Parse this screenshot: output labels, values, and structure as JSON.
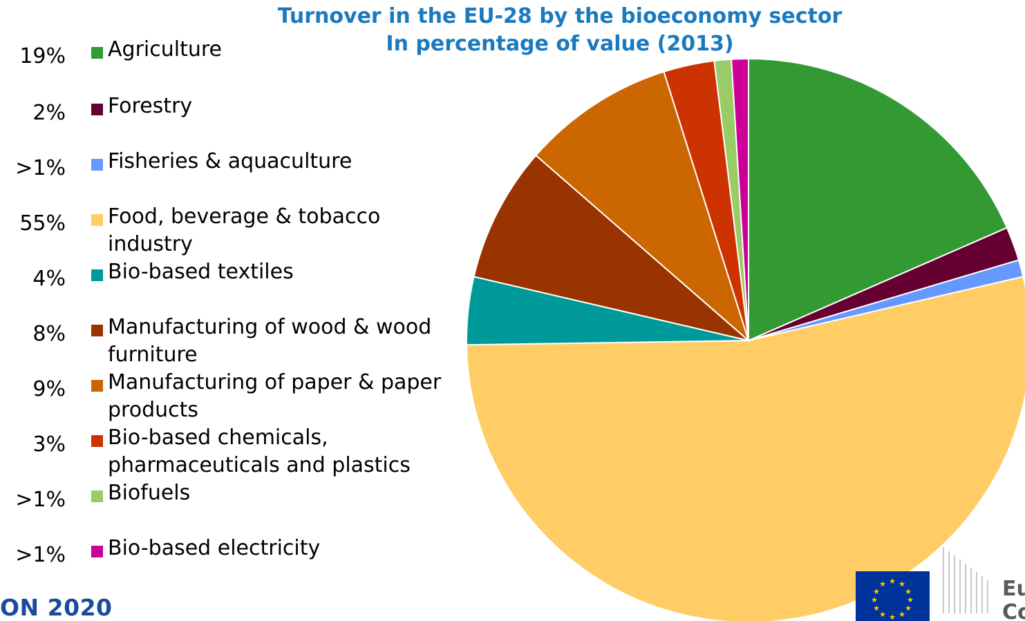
{
  "chart_data": {
    "type": "pie",
    "title": "Turnover in the EU-28 by the bioeconomy sector",
    "subtitle": "In percentage of value (2013)",
    "legend_position": "left",
    "slices": [
      {
        "name": "Agriculture",
        "label": "19%",
        "value": 19,
        "color": "#339933"
      },
      {
        "name": "Forestry",
        "label": "2%",
        "value": 2,
        "color": "#660033"
      },
      {
        "name": "Fisheries & aquaculture",
        "label": ">1%",
        "value": 1,
        "color": "#6699ff"
      },
      {
        "name": "Food, beverage & tobacco industry",
        "label": "55%",
        "value": 55,
        "color": "#ffcc66"
      },
      {
        "name": "Bio-based textiles",
        "label": "4%",
        "value": 4,
        "color": "#009999"
      },
      {
        "name": "Manufacturing of wood & wood furniture",
        "label": "8%",
        "value": 8,
        "color": "#993300"
      },
      {
        "name": "Manufacturing of paper & paper products",
        "label": "9%",
        "value": 9,
        "color": "#cc6600"
      },
      {
        "name": "Bio-based chemicals, pharmaceuticals and plastics",
        "label": "3%",
        "value": 3,
        "color": "#cc3300"
      },
      {
        "name": "Biofuels",
        "label": ">1%",
        "value": 1,
        "color": "#99cc66"
      },
      {
        "name": "Bio-based electricity",
        "label": ">1%",
        "value": 1,
        "color": "#cc0099"
      }
    ]
  },
  "footer": {
    "program_text": "ON 2020",
    "org_text_line1": "Eu",
    "org_text_line2": "Co"
  }
}
